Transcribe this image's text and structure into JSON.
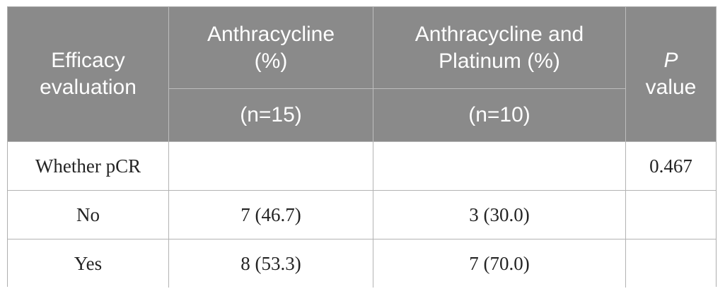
{
  "colors": {
    "header_background": "#8a8a8a",
    "header_text": "#ffffff",
    "header_divider": "#bdbdbd",
    "body_border": "#b3b3b3",
    "body_text": "#242424",
    "page_background": "#ffffff"
  },
  "table": {
    "header": {
      "col1": "Efficacy evaluation",
      "col2": {
        "title": "Anthracycline (%)",
        "n": "(n=15)"
      },
      "col3": {
        "title": "Anthracycline and Platinum (%)",
        "n": "(n=10)"
      },
      "col4": {
        "italic": "P",
        "text": "value"
      }
    },
    "rows": [
      [
        "Whether pCR",
        "",
        "",
        "0.467"
      ],
      [
        "No",
        "7 (46.7)",
        "3 (30.0)",
        ""
      ],
      [
        "Yes",
        "8 (53.3)",
        "7 (70.0)",
        ""
      ]
    ]
  }
}
